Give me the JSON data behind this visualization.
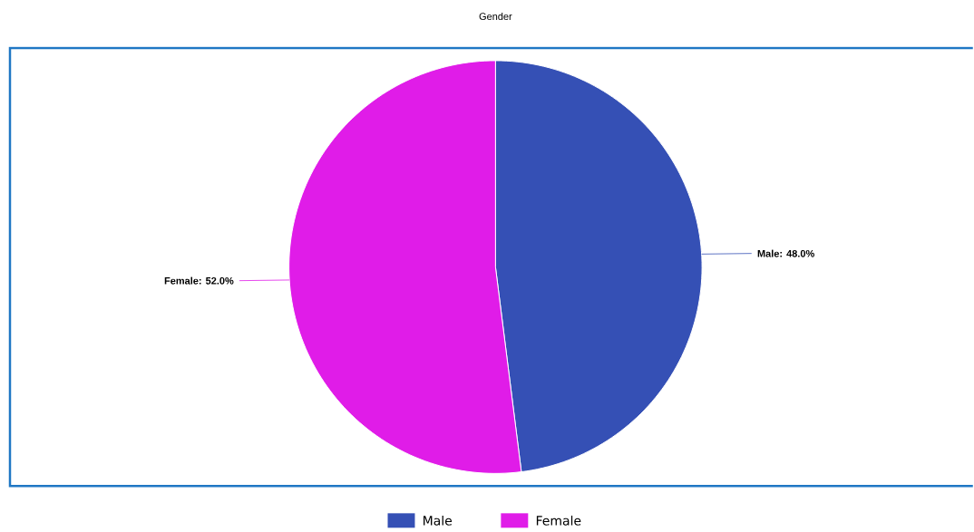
{
  "chart_data": {
    "type": "pie",
    "title": "Gender",
    "categories": [
      "Male",
      "Female"
    ],
    "values": [
      48.0,
      52.0
    ],
    "colors": [
      "#3550b5",
      "#e01ce8"
    ],
    "value_labels": [
      "Male: 48.0%",
      "Female: 52.0%"
    ],
    "legend": "bottom"
  }
}
